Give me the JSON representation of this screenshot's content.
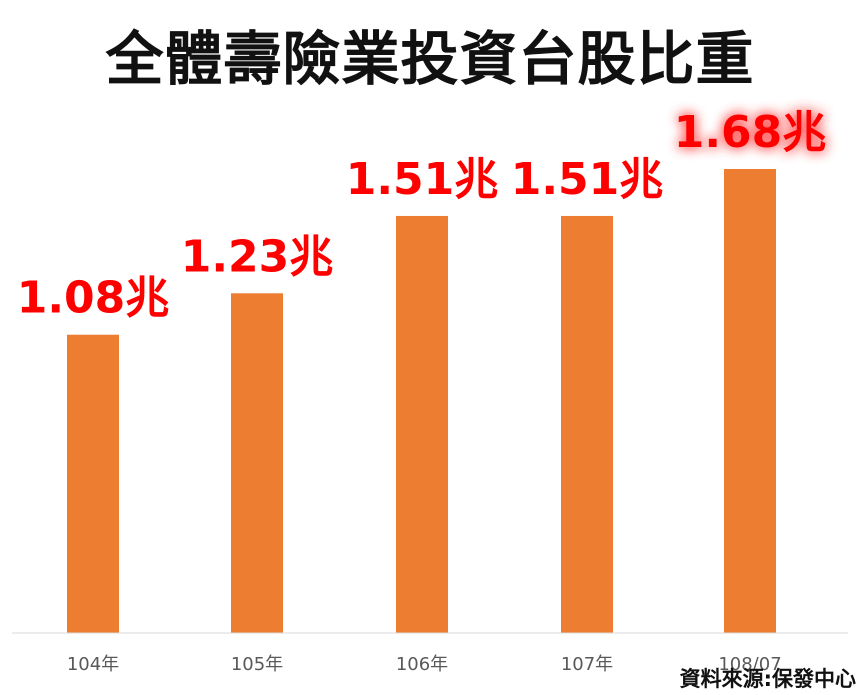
{
  "title": "全體壽險業投資台股比重",
  "source": "資料來源:保發中心",
  "colors": {
    "bar": "#ED7D31",
    "label": "#FF0000",
    "axis": "#D9D9D9",
    "tick": "#595959",
    "glow": "#FF5050"
  },
  "chart_data": {
    "type": "bar",
    "title": "全體壽險業投資台股比重",
    "categories": [
      "104年",
      "105年",
      "106年",
      "107年",
      "108/07"
    ],
    "values": [
      1.08,
      1.23,
      1.51,
      1.51,
      1.68
    ],
    "data_labels": [
      "1.08兆",
      "1.23兆",
      "1.51兆",
      "1.51兆",
      "1.68兆"
    ],
    "unit": "兆",
    "highlight_index": 4,
    "ylim": [
      0,
      1.68
    ],
    "grid": false,
    "legend": "none"
  }
}
